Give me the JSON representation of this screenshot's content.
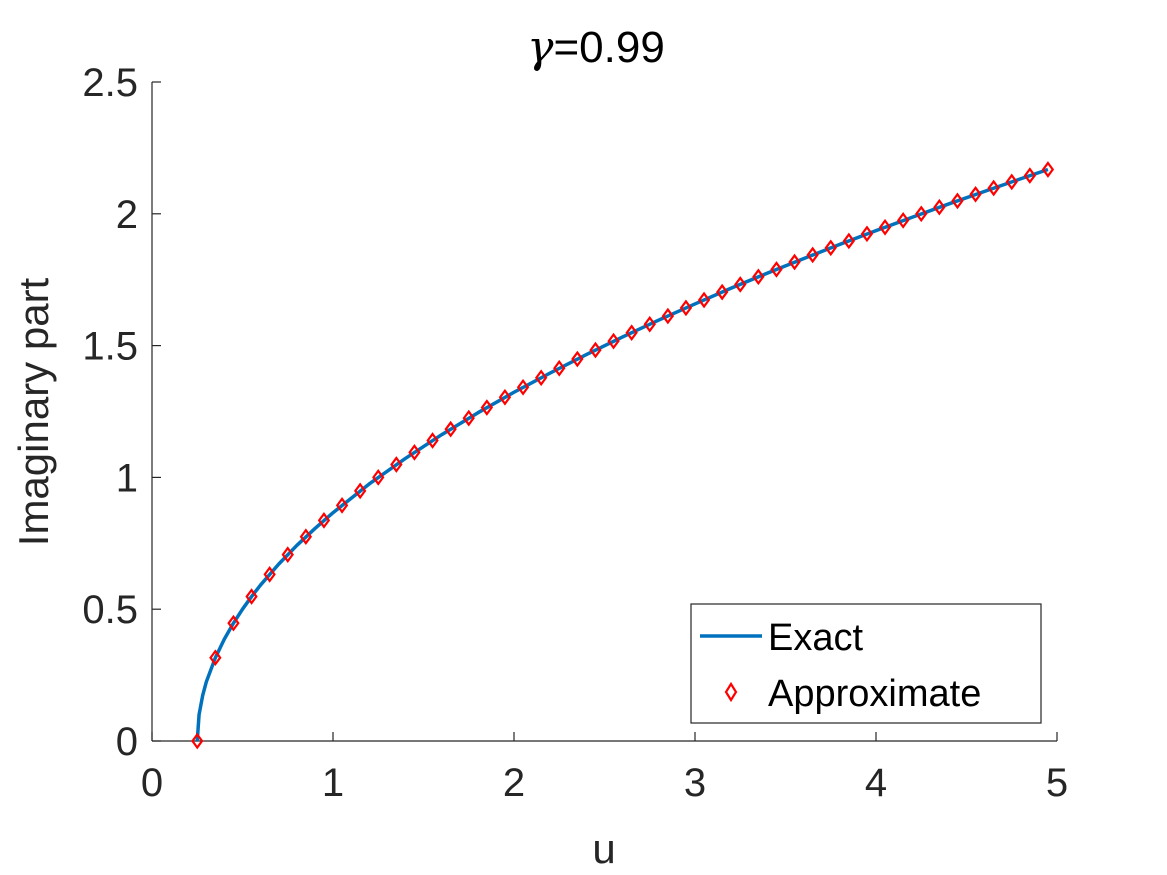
{
  "chart_data": {
    "type": "line",
    "title": {
      "symbol": "γ",
      "text": "=0.99"
    },
    "xlabel": "u",
    "ylabel": "Imaginary part",
    "xlim": [
      0,
      5
    ],
    "ylim": [
      0,
      2.5
    ],
    "xticks": [
      0,
      1,
      2,
      3,
      4,
      5
    ],
    "xtick_labels": [
      "0",
      "1",
      "2",
      "3",
      "4",
      "5"
    ],
    "yticks": [
      0,
      0.5,
      1,
      1.5,
      2,
      2.5
    ],
    "ytick_labels": [
      "0",
      "0.5",
      "1",
      "1.5",
      "2",
      "2.5"
    ],
    "grid": false,
    "legend_position": "bottom-right",
    "series": [
      {
        "name": "Exact",
        "style": "line",
        "color": "#0072BD",
        "x": [
          0.25,
          0.26,
          0.28,
          0.3,
          0.35,
          0.4,
          0.45,
          0.5,
          0.55,
          0.6,
          0.7,
          0.8,
          0.9,
          1.0,
          1.2,
          1.4,
          1.6,
          1.8,
          2.0,
          2.2,
          2.4,
          2.6,
          2.8,
          3.0,
          3.2,
          3.4,
          3.6,
          3.8,
          4.0,
          4.2,
          4.4,
          4.6,
          4.8,
          4.95
        ],
        "y": [
          0.0,
          0.1,
          0.173,
          0.224,
          0.316,
          0.387,
          0.447,
          0.5,
          0.548,
          0.592,
          0.671,
          0.742,
          0.806,
          0.866,
          0.975,
          1.072,
          1.162,
          1.245,
          1.323,
          1.396,
          1.466,
          1.533,
          1.597,
          1.658,
          1.718,
          1.775,
          1.83,
          1.884,
          1.936,
          1.987,
          2.037,
          2.085,
          2.133,
          2.168
        ]
      },
      {
        "name": "Approximate",
        "style": "markers",
        "marker": "diamond",
        "color": "#FF0000",
        "x": [
          0.25,
          0.35,
          0.45,
          0.55,
          0.65,
          0.75,
          0.85,
          0.95,
          1.05,
          1.15,
          1.25,
          1.35,
          1.45,
          1.55,
          1.65,
          1.75,
          1.85,
          1.95,
          2.05,
          2.15,
          2.25,
          2.35,
          2.45,
          2.55,
          2.65,
          2.75,
          2.85,
          2.95,
          3.05,
          3.15,
          3.25,
          3.35,
          3.45,
          3.55,
          3.65,
          3.75,
          3.85,
          3.95,
          4.05,
          4.15,
          4.25,
          4.35,
          4.45,
          4.55,
          4.65,
          4.75,
          4.85,
          4.95
        ],
        "y": [
          0.0,
          0.316,
          0.447,
          0.548,
          0.632,
          0.707,
          0.775,
          0.837,
          0.894,
          0.949,
          1.0,
          1.049,
          1.095,
          1.14,
          1.183,
          1.225,
          1.265,
          1.304,
          1.342,
          1.378,
          1.414,
          1.449,
          1.483,
          1.517,
          1.549,
          1.581,
          1.612,
          1.643,
          1.673,
          1.703,
          1.732,
          1.761,
          1.789,
          1.817,
          1.844,
          1.871,
          1.897,
          1.924,
          1.949,
          1.975,
          2.0,
          2.025,
          2.049,
          2.074,
          2.098,
          2.121,
          2.145,
          2.168
        ]
      }
    ]
  }
}
